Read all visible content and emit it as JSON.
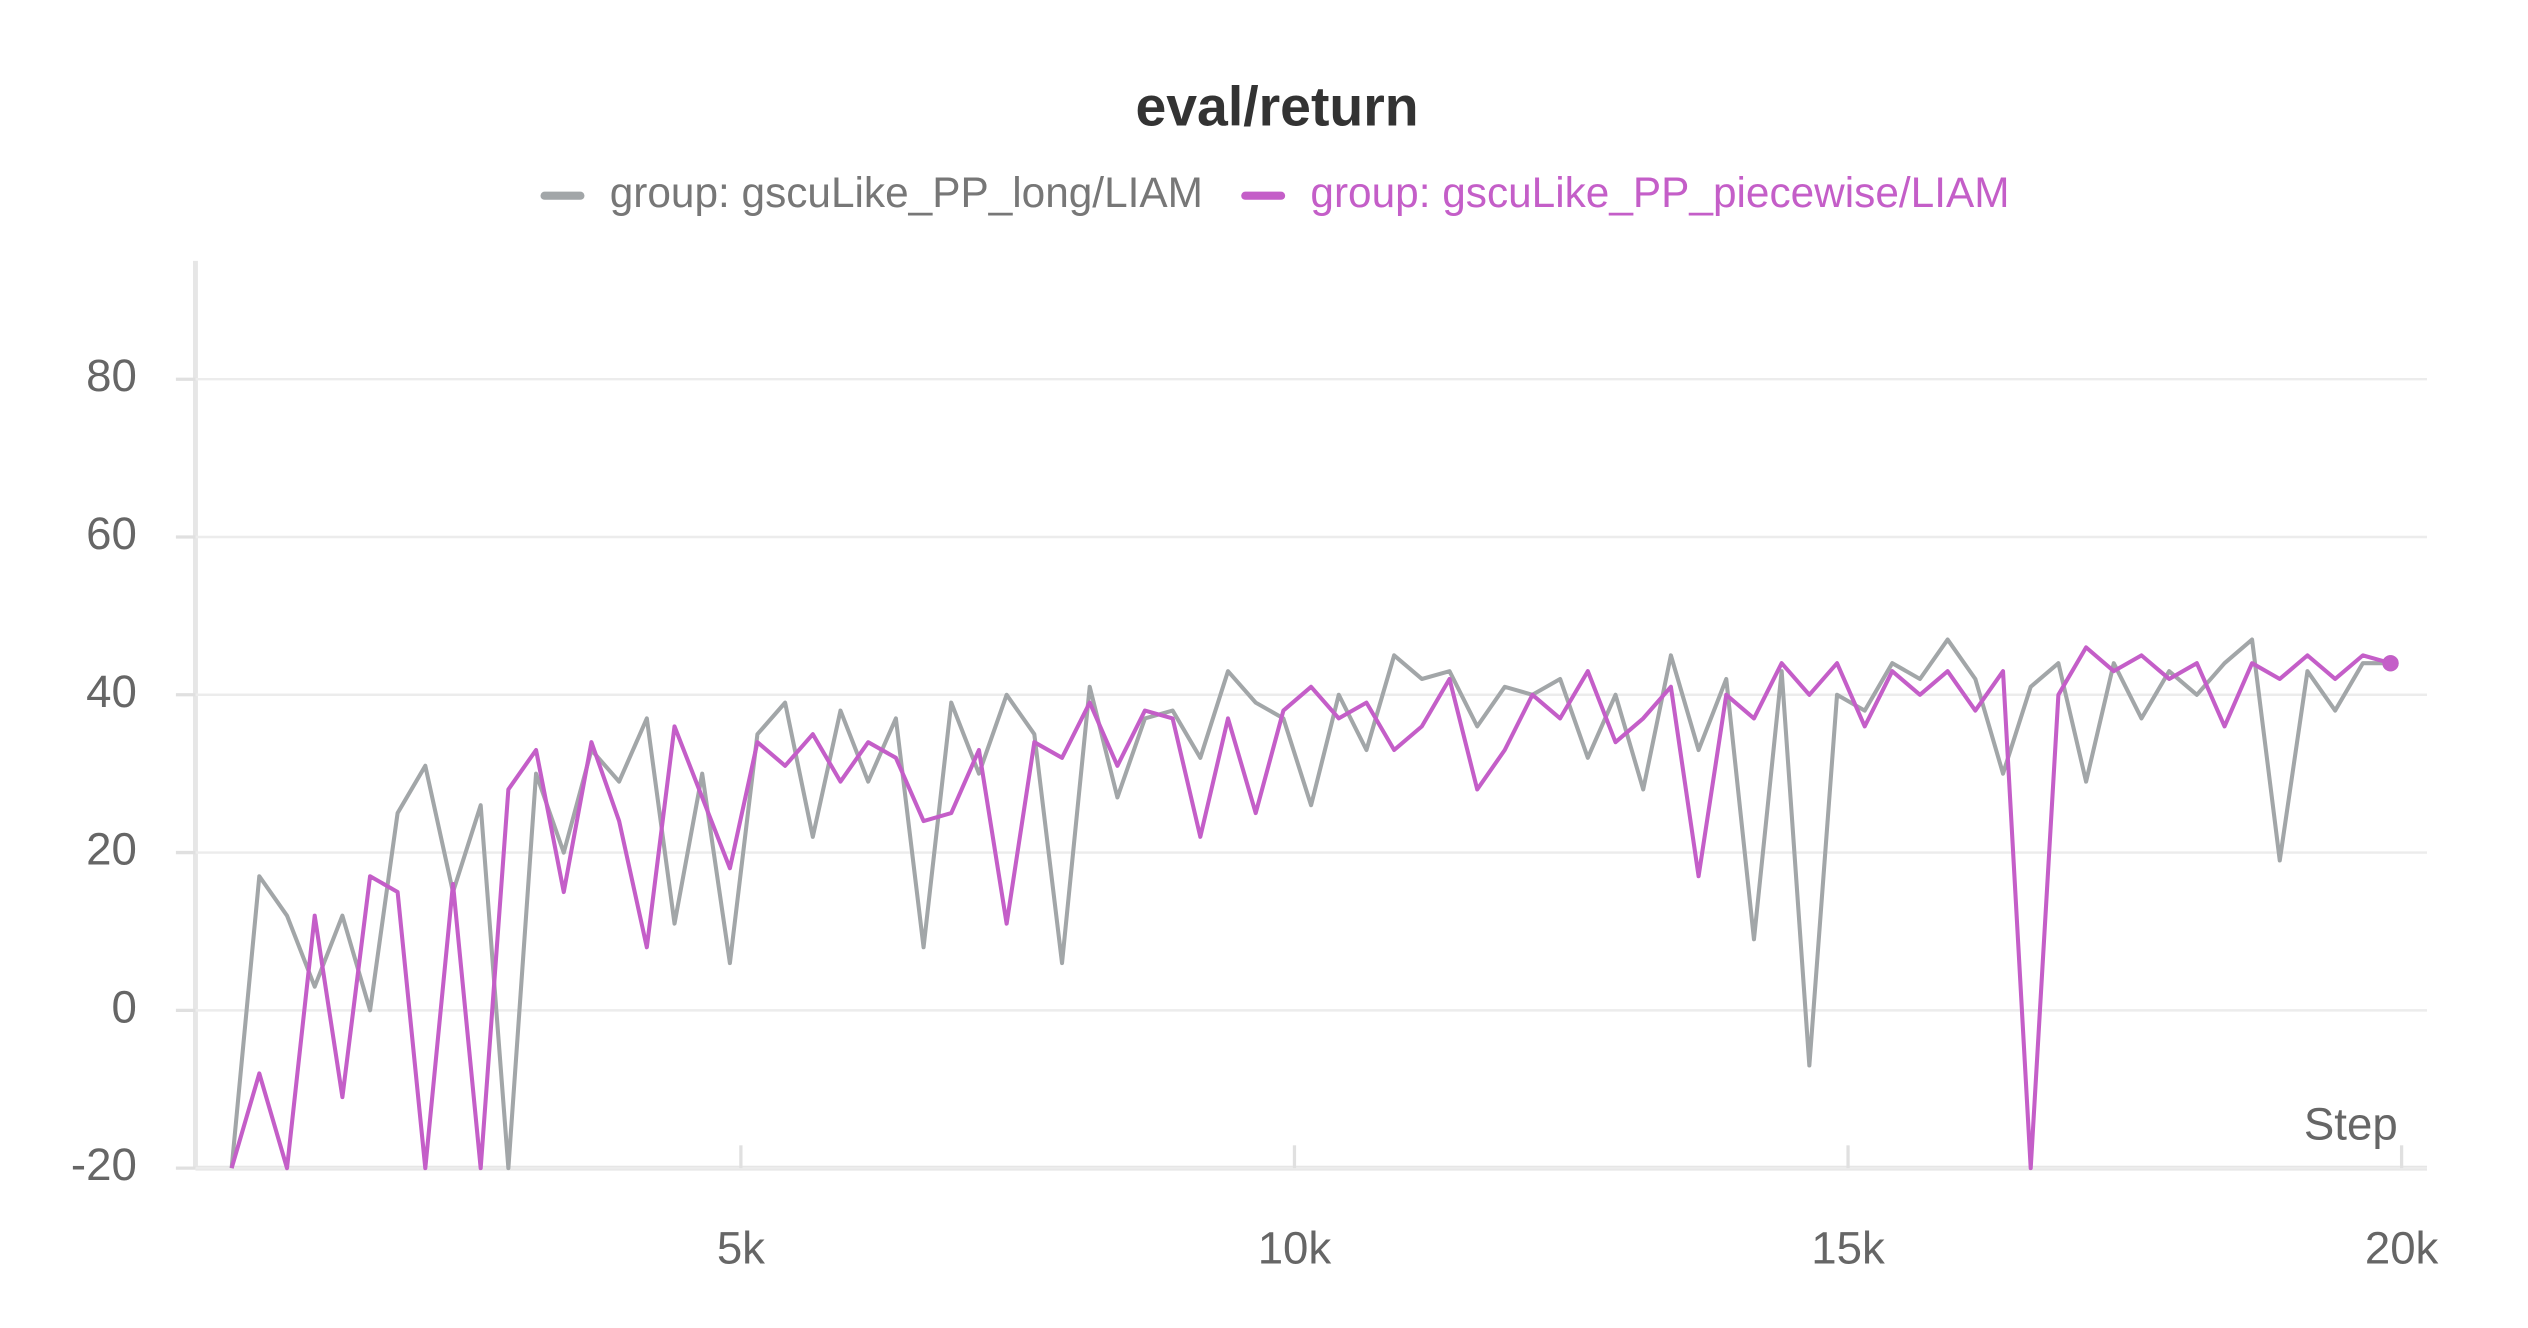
{
  "chart_data": {
    "type": "line",
    "title": "eval/return",
    "x_label": "Step",
    "x": [
      400,
      650,
      900,
      1150,
      1400,
      1650,
      1900,
      2150,
      2400,
      2650,
      2900,
      3150,
      3400,
      3650,
      3900,
      4150,
      4400,
      4650,
      4900,
      5150,
      5400,
      5650,
      5900,
      6150,
      6400,
      6650,
      6900,
      7150,
      7400,
      7650,
      7900,
      8150,
      8400,
      8650,
      8900,
      9150,
      9400,
      9650,
      9900,
      10150,
      10400,
      10650,
      10900,
      11150,
      11400,
      11650,
      11900,
      12150,
      12400,
      12650,
      12900,
      13150,
      13400,
      13650,
      13900,
      14150,
      14400,
      14650,
      14900,
      15150,
      15400,
      15650,
      15900,
      16150,
      16400,
      16650,
      16900,
      17150,
      17400,
      17650,
      17900,
      18150,
      18400,
      18650,
      18900,
      19150,
      19400,
      19650,
      19900
    ],
    "series": [
      {
        "name": "group: gscuLike_PP_long/LIAM",
        "color": "#a2a6a8",
        "values": [
          -20,
          17,
          12,
          3,
          12,
          0,
          25,
          31,
          15,
          26,
          -20,
          30,
          20,
          33,
          29,
          37,
          11,
          30,
          6,
          35,
          39,
          22,
          38,
          29,
          37,
          8,
          39,
          30,
          40,
          35,
          6,
          41,
          27,
          37,
          38,
          32,
          43,
          39,
          37,
          26,
          40,
          33,
          45,
          42,
          43,
          36,
          41,
          40,
          42,
          32,
          40,
          28,
          45,
          33,
          42,
          9,
          43,
          -7,
          40,
          38,
          44,
          42,
          47,
          42,
          30,
          41,
          44,
          29,
          44,
          37,
          43,
          40,
          44,
          47,
          19,
          43,
          38,
          44,
          44
        ]
      },
      {
        "name": "group: gscuLike_PP_piecewise/LIAM",
        "color": "#c45ec8",
        "values": [
          -20,
          -8,
          -20,
          12,
          -11,
          17,
          15,
          -20,
          16,
          -20,
          28,
          33,
          15,
          34,
          24,
          8,
          36,
          27,
          18,
          34,
          31,
          35,
          29,
          34,
          32,
          24,
          25,
          33,
          11,
          34,
          32,
          39,
          31,
          38,
          37,
          22,
          37,
          25,
          38,
          41,
          37,
          39,
          33,
          36,
          42,
          28,
          33,
          40,
          37,
          43,
          34,
          37,
          41,
          17,
          40,
          37,
          44,
          40,
          44,
          36,
          43,
          40,
          43,
          38,
          43,
          -20,
          40,
          46,
          43,
          45,
          42,
          44,
          36,
          44,
          42,
          45,
          42,
          45,
          44
        ]
      }
    ],
    "xlim": [
      0,
      20200
    ],
    "ylim": [
      -20,
      95
    ],
    "xticks": [
      {
        "value": 5000,
        "label": "5k"
      },
      {
        "value": 10000,
        "label": "10k"
      },
      {
        "value": 15000,
        "label": "15k"
      },
      {
        "value": 20000,
        "label": "20k"
      }
    ],
    "yticks": [
      -20,
      0,
      20,
      40,
      60,
      80
    ],
    "grid": true
  }
}
